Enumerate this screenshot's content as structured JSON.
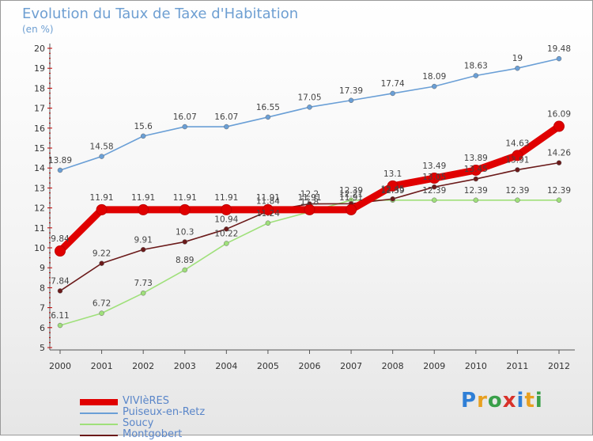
{
  "header": {
    "title": "Evolution du Taux de Taxe d'Habitation",
    "subtitle": "(en %)"
  },
  "chart_data": {
    "type": "line",
    "title": "Evolution du Taux de Taxe d'Habitation",
    "ylabel": "(en %)",
    "xlabel": "",
    "x": [
      "2000",
      "2001",
      "2002",
      "2003",
      "2004",
      "2005",
      "2006",
      "2007",
      "2008",
      "2009",
      "2010",
      "2011",
      "2012"
    ],
    "yticks": [
      5,
      6,
      7,
      8,
      9,
      10,
      11,
      12,
      13,
      14,
      15,
      16,
      17,
      18,
      19,
      20
    ],
    "ylim": [
      5,
      20
    ],
    "grid": false,
    "legend_position": "bottom-left",
    "series": [
      {
        "name": "VIVIèRES",
        "color": "#e00000",
        "values": [
          9.84,
          11.91,
          11.91,
          11.91,
          11.91,
          11.91,
          11.91,
          11.91,
          13.1,
          13.49,
          13.89,
          14.63,
          16.09
        ],
        "labels": [
          "9.84",
          "11.91",
          "11.91",
          "11.91",
          "11.91",
          "11.91",
          "11.91",
          "11.91",
          "13.1",
          "13.49",
          "13.89",
          "14.63",
          "16.09"
        ]
      },
      {
        "name": "Puiseux-en-Retz",
        "color": "#6a9fd6",
        "values": [
          13.89,
          14.58,
          15.6,
          16.07,
          16.07,
          16.55,
          17.05,
          17.39,
          17.74,
          18.09,
          18.63,
          19,
          19.48
        ],
        "labels": [
          "13.89",
          "14.58",
          "15.6",
          "16.07",
          "16.07",
          "16.55",
          "17.05",
          "17.39",
          "17.74",
          "18.09",
          "18.63",
          "19",
          "19.48"
        ]
      },
      {
        "name": "Soucy",
        "color": "#9fe07a",
        "values": [
          6.11,
          6.72,
          7.73,
          8.89,
          10.22,
          11.24,
          11.8,
          12.39,
          12.39,
          12.39,
          12.39,
          12.39,
          12.39
        ],
        "labels": [
          "6.11",
          "6.72",
          "7.73",
          "8.89",
          "10.22",
          "11.24",
          "11.8",
          "12.39",
          "12.39",
          "12.39",
          "12.39",
          "12.39",
          "12.39"
        ]
      },
      {
        "name": "Montgobert",
        "color": "#6b1a1a",
        "values": [
          7.84,
          9.22,
          9.91,
          10.3,
          10.94,
          11.84,
          12.2,
          12.21,
          12.45,
          13.05,
          13.45,
          13.91,
          14.26
        ],
        "labels": [
          "7.84",
          "9.22",
          "9.91",
          "10.3",
          "10.94",
          "11.84",
          "12.2",
          "12.21",
          "12.45",
          "13.05",
          "13.45",
          "13.91",
          "14.26"
        ]
      }
    ]
  },
  "legend": {
    "items": [
      {
        "label": "VIVIèRES",
        "color": "#e00000"
      },
      {
        "label": "Puiseux-en-Retz",
        "color": "#6a9fd6"
      },
      {
        "label": "Soucy",
        "color": "#9fe07a"
      },
      {
        "label": "Montgobert",
        "color": "#6b1a1a"
      }
    ]
  },
  "logo": {
    "letters": [
      "P",
      "r",
      "o",
      "x",
      "i",
      "t",
      "i"
    ],
    "colors": [
      "#2f7fd6",
      "#e8a020",
      "#3aa04a",
      "#d8322a",
      "#2f7fd6",
      "#e8a020",
      "#3aa04a"
    ]
  }
}
